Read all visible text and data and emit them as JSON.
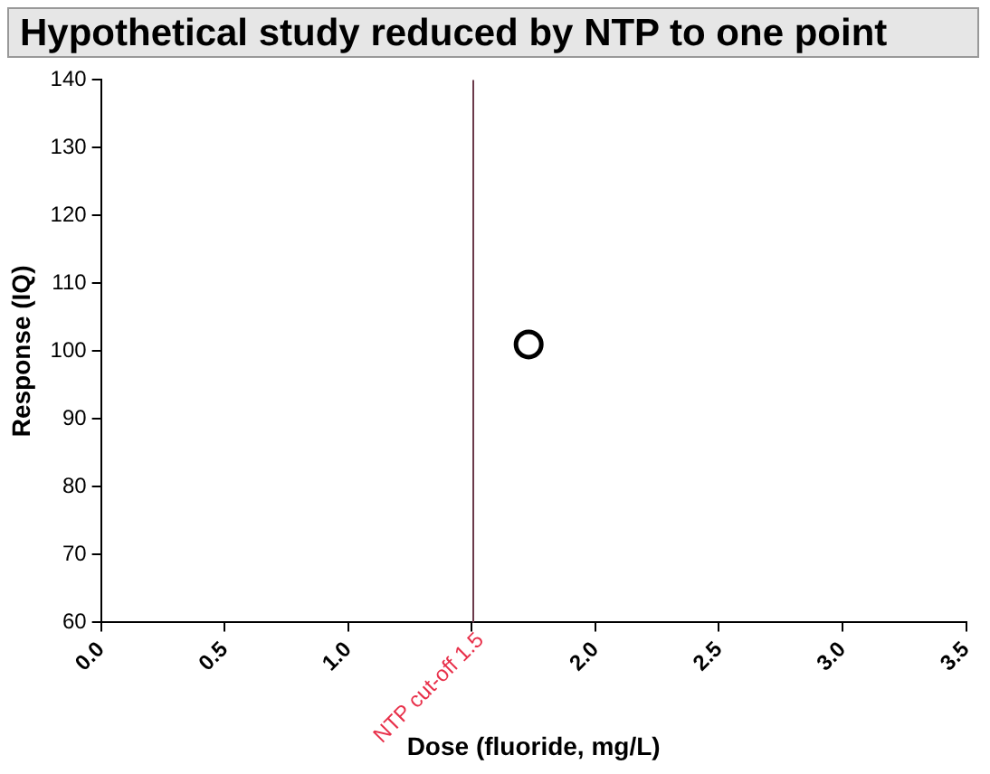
{
  "chart_data": {
    "type": "scatter",
    "title": "Hypothetical study reduced by NTP to one point",
    "xlabel": "Dose (fluoride, mg/L)",
    "ylabel": "Response (IQ)",
    "series": [
      {
        "color": "#000000",
        "x": [
          1.73
        ],
        "values": [
          101
        ]
      }
    ],
    "xlim": [
      0,
      3.5
    ],
    "xticks": [
      {
        "value": 0,
        "label": "0.0"
      },
      {
        "value": 0.5,
        "label": "0.5"
      },
      {
        "value": 1,
        "label": "1.0"
      },
      {
        "value": 1.5,
        "label": null
      },
      {
        "value": 2,
        "label": "2.0"
      },
      {
        "value": 2.5,
        "label": "2.5"
      },
      {
        "value": 3,
        "label": "3.0"
      },
      {
        "value": 3.5,
        "label": "3.5"
      }
    ],
    "ylim": [
      60,
      140
    ],
    "yticks": [
      60,
      70,
      80,
      90,
      100,
      110,
      120,
      130,
      140
    ],
    "ref_lines": [
      {
        "axis": "x",
        "value": 1.5,
        "label": "NTP cut-off 1.5",
        "color": "#6b3a4a"
      }
    ],
    "marker": "circle",
    "grid": false,
    "legend": false
  }
}
